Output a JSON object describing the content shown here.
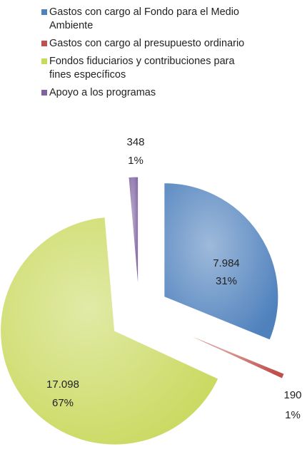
{
  "chart_data": {
    "type": "pie",
    "categories": [
      "Gastos con cargo al Fondo para el Medio Ambiente",
      "Gastos con cargo al presupuesto ordinario",
      "Fondos fiduciarios y contribuciones para fines específicos",
      "Apoyo a los programas"
    ],
    "values": [
      7984,
      190,
      17098,
      348
    ],
    "value_labels": [
      "7.984",
      "190",
      "17.098",
      "348"
    ],
    "percentages": [
      31,
      1,
      67,
      1
    ],
    "percentage_labels": [
      "31%",
      "1%",
      "67%",
      "1%"
    ],
    "colors": [
      "#4f81bd",
      "#c0504d",
      "#c9d95e",
      "#8064a2"
    ],
    "legend": "top"
  }
}
